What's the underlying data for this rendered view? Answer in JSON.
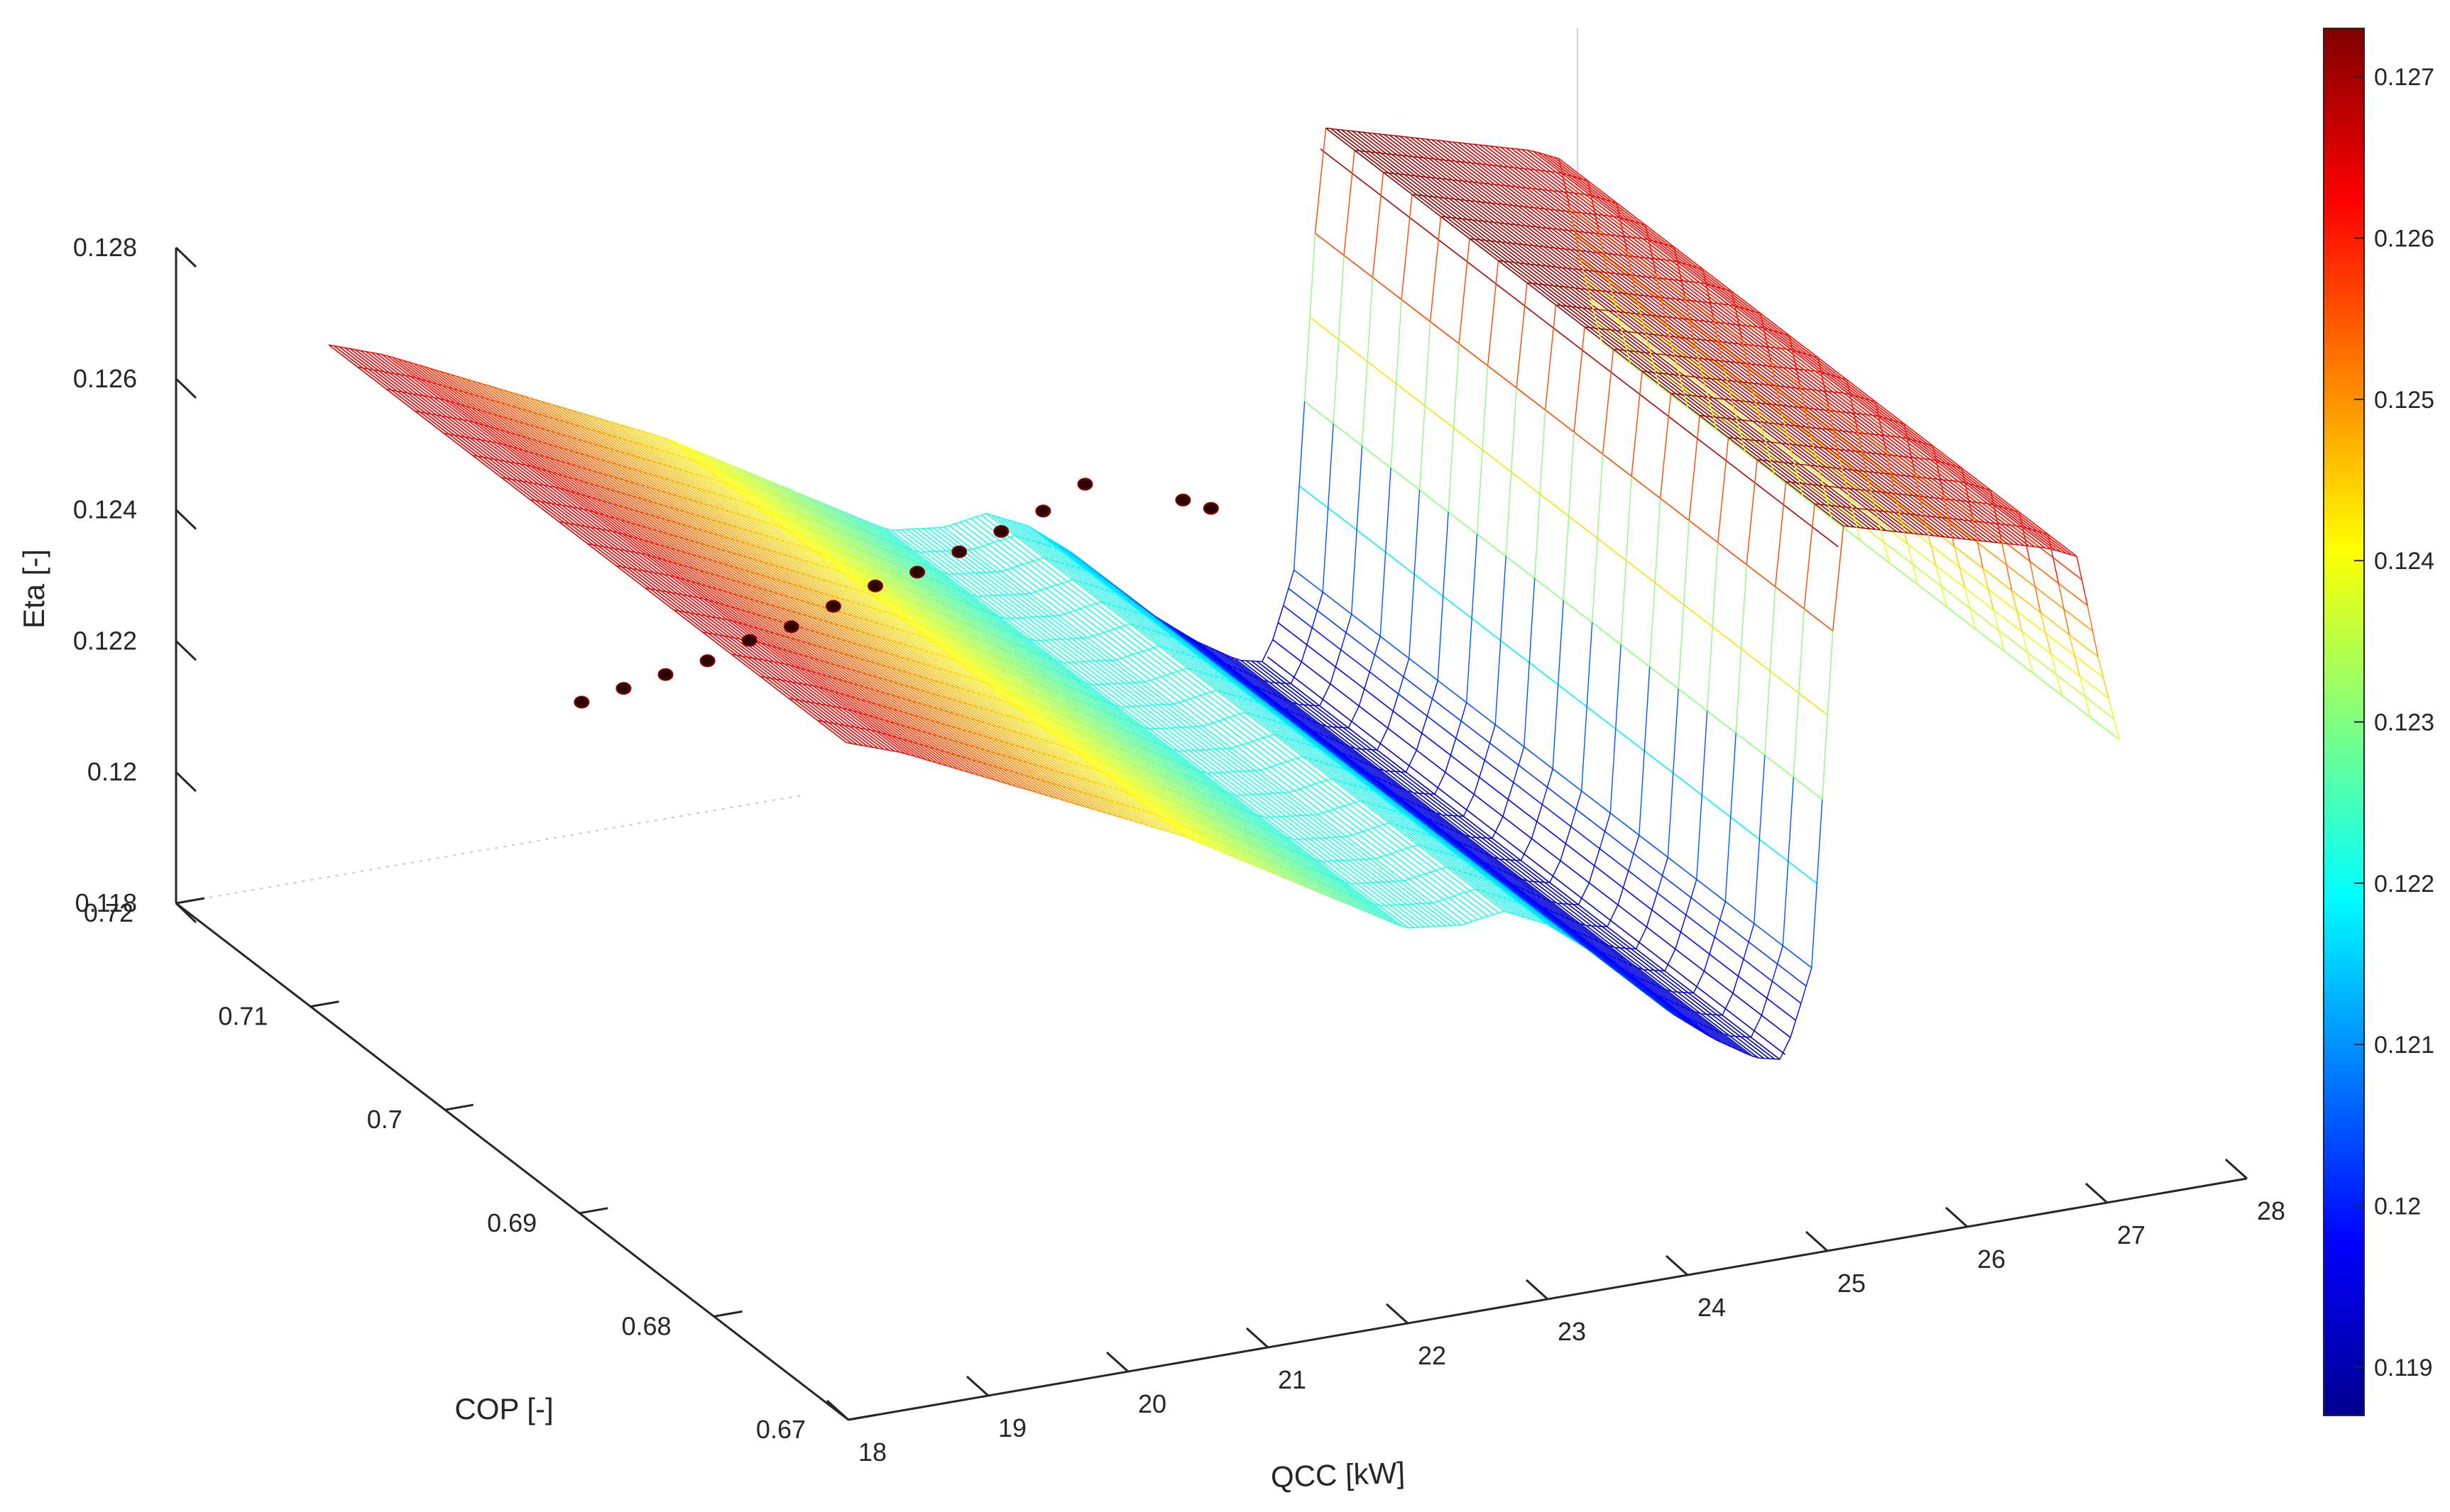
{
  "chart_data": {
    "type": "surface3d",
    "xlabel": "QCC [kW]",
    "ylabel": "COP [-]",
    "zlabel": "Eta [-]",
    "x_ticks": [
      18,
      19,
      20,
      21,
      22,
      23,
      24,
      25,
      26,
      27,
      28
    ],
    "y_ticks": [
      0.67,
      0.68,
      0.69,
      0.7,
      0.71,
      0.72
    ],
    "z_ticks": [
      0.118,
      0.12,
      0.122,
      0.124,
      0.126,
      0.128
    ],
    "xlim": [
      18,
      28
    ],
    "ylim": [
      0.67,
      0.72
    ],
    "zlim": [
      0.118,
      0.128
    ],
    "colormap": "jet",
    "colorbar": {
      "range": [
        0.1187,
        0.1273
      ],
      "ticks": [
        0.119,
        0.12,
        0.121,
        0.122,
        0.123,
        0.124,
        0.125,
        0.126,
        0.127
      ]
    },
    "surface_profile": {
      "qcc": [
        18.9,
        19.3,
        19.7,
        20.1,
        20.5,
        20.9,
        21.3,
        21.7,
        22.1,
        22.5,
        22.9,
        23.3,
        23.6,
        23.9,
        24.2,
        24.5,
        24.8,
        25.1,
        25.4,
        25.6,
        25.8,
        26.0,
        26.5,
        27.0,
        27.5,
        27.7,
        27.85,
        28.0
      ],
      "eta": [
        0.1265,
        0.1262,
        0.1258,
        0.1254,
        0.125,
        0.1246,
        0.1242,
        0.1237,
        0.1232,
        0.1227,
        0.1222,
        0.1221,
        0.1222,
        0.1219,
        0.1214,
        0.1208,
        0.1202,
        0.1197,
        0.1193,
        0.1192,
        0.1205,
        0.1272,
        0.1269,
        0.1266,
        0.1263,
        0.1261,
        0.1245,
        0.1232
      ]
    },
    "markers": {
      "qcc": [
        20.9,
        21.2,
        21.5,
        21.8,
        22.1,
        22.4,
        22.7,
        23.0,
        23.3,
        23.6,
        23.9,
        24.2,
        24.5,
        25.2,
        25.4
      ],
      "cop": [
        0.72,
        0.72,
        0.72,
        0.72,
        0.72,
        0.72,
        0.72,
        0.72,
        0.72,
        0.72,
        0.72,
        0.72,
        0.72,
        0.72,
        0.72
      ],
      "eta": [
        0.12,
        0.1201,
        0.1202,
        0.1203,
        0.1205,
        0.1206,
        0.1208,
        0.121,
        0.1211,
        0.1213,
        0.1215,
        0.1217,
        0.122,
        0.1215,
        0.1213
      ]
    }
  }
}
